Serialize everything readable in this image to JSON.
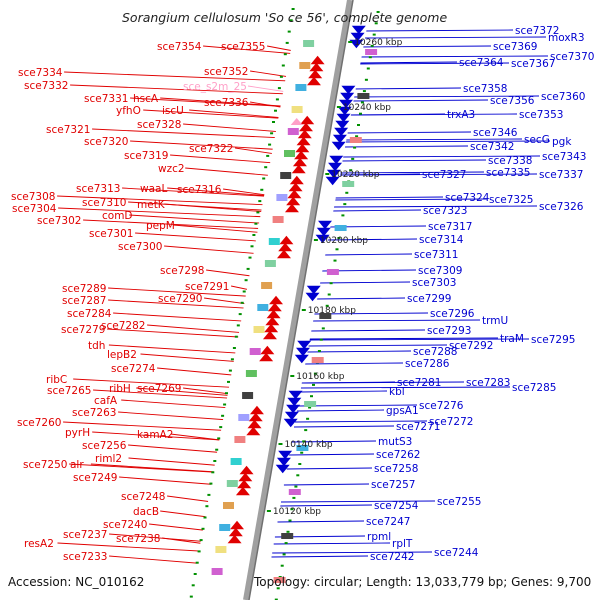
{
  "title": "Sorangium cellulosum 'So ce 56', complete genome",
  "footer": {
    "accession": "Accession: NC_010162",
    "info": "Topology: circular; Length: 13,033,779 bp; Genes: 9,700"
  },
  "colors": {
    "forward": "#e00000",
    "reverse": "#0000d0",
    "highlight": "#ffa0c8",
    "backbone": "#a0a0a0",
    "scale": "#009000"
  },
  "scale_marks": [
    "10260 kbp",
    "10240 kbp",
    "10220 kbp",
    "10200 kbp",
    "10180 kbp",
    "10160 kbp",
    "10140 kbp",
    "10120 kbp"
  ],
  "left_labels": [
    {
      "text": "sce7354"
    },
    {
      "text": "sce7355"
    },
    {
      "text": "sce7352"
    },
    {
      "text": "sce_s2m_25"
    },
    {
      "text": "sce7334"
    },
    {
      "text": "sce7332"
    },
    {
      "text": "sce7331"
    },
    {
      "text": "hscA"
    },
    {
      "text": "sce7336"
    },
    {
      "text": "yfhO"
    },
    {
      "text": "iscU"
    },
    {
      "text": "sce7328"
    },
    {
      "text": "sce7321"
    },
    {
      "text": "sce7320"
    },
    {
      "text": "sce7322"
    },
    {
      "text": "sce7319"
    },
    {
      "text": "wzc2"
    },
    {
      "text": "sce7313"
    },
    {
      "text": "waaL"
    },
    {
      "text": "sce7316"
    },
    {
      "text": "sce7308"
    },
    {
      "text": "sce7310"
    },
    {
      "text": "metK"
    },
    {
      "text": "sce7304"
    },
    {
      "text": "comD"
    },
    {
      "text": "sce7302"
    },
    {
      "text": "pepM"
    },
    {
      "text": "sce7301"
    },
    {
      "text": "sce7300"
    },
    {
      "text": "sce7298"
    },
    {
      "text": "sce7291"
    },
    {
      "text": "sce7289"
    },
    {
      "text": "sce7290"
    },
    {
      "text": "sce7287"
    },
    {
      "text": "sce7284"
    },
    {
      "text": "sce7282"
    },
    {
      "text": "sce7279"
    },
    {
      "text": "tdh"
    },
    {
      "text": "lepB2"
    },
    {
      "text": "sce7274"
    },
    {
      "text": "ribC"
    },
    {
      "text": "ribH"
    },
    {
      "text": "sce7269"
    },
    {
      "text": "sce7265"
    },
    {
      "text": "cafA"
    },
    {
      "text": "sce7263"
    },
    {
      "text": "sce7260"
    },
    {
      "text": "pyrH"
    },
    {
      "text": "kamA2"
    },
    {
      "text": "sce7256"
    },
    {
      "text": "riml2"
    },
    {
      "text": "sce7250"
    },
    {
      "text": "alr"
    },
    {
      "text": "sce7249"
    },
    {
      "text": "sce7248"
    },
    {
      "text": "dacB"
    },
    {
      "text": "sce7240"
    },
    {
      "text": "sce7237"
    },
    {
      "text": "sce7238"
    },
    {
      "text": "resA2"
    },
    {
      "text": "sce7233"
    }
  ],
  "right_labels": [
    {
      "text": "sce7372"
    },
    {
      "text": "moxR3"
    },
    {
      "text": "sce7369"
    },
    {
      "text": "sce7370"
    },
    {
      "text": "sce7364"
    },
    {
      "text": "sce7367"
    },
    {
      "text": "sce7358"
    },
    {
      "text": "sce7360"
    },
    {
      "text": "sce7356"
    },
    {
      "text": "trxA3"
    },
    {
      "text": "sce7353"
    },
    {
      "text": "sce7346"
    },
    {
      "text": "secG"
    },
    {
      "text": "pgk"
    },
    {
      "text": "sce7342"
    },
    {
      "text": "sce7343"
    },
    {
      "text": "sce7338"
    },
    {
      "text": "sce7335"
    },
    {
      "text": "sce7337"
    },
    {
      "text": "sce7327"
    },
    {
      "text": "sce7324"
    },
    {
      "text": "sce7325"
    },
    {
      "text": "sce7326"
    },
    {
      "text": "sce7323"
    },
    {
      "text": "sce7317"
    },
    {
      "text": "sce7314"
    },
    {
      "text": "sce7311"
    },
    {
      "text": "sce7309"
    },
    {
      "text": "sce7303"
    },
    {
      "text": "sce7299"
    },
    {
      "text": "sce7296"
    },
    {
      "text": "trmU"
    },
    {
      "text": "sce7293"
    },
    {
      "text": "sce7292"
    },
    {
      "text": "traM"
    },
    {
      "text": "sce7295"
    },
    {
      "text": "sce7288"
    },
    {
      "text": "sce7286"
    },
    {
      "text": "sce7281"
    },
    {
      "text": "sce7283"
    },
    {
      "text": "sce7285"
    },
    {
      "text": "kbl"
    },
    {
      "text": "sce7276"
    },
    {
      "text": "gpsA1"
    },
    {
      "text": "sce7272"
    },
    {
      "text": "sce7271"
    },
    {
      "text": "mutS3"
    },
    {
      "text": "sce7262"
    },
    {
      "text": "sce7258"
    },
    {
      "text": "sce7257"
    },
    {
      "text": "sce7255"
    },
    {
      "text": "sce7254"
    },
    {
      "text": "sce7247"
    },
    {
      "text": "rpml"
    },
    {
      "text": "rplT"
    },
    {
      "text": "sce7244"
    },
    {
      "text": "sce7242"
    }
  ]
}
